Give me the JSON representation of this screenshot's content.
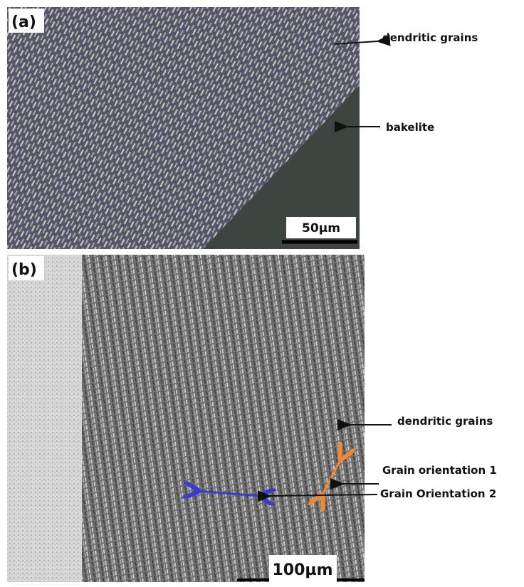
{
  "panel_a": {
    "label": "(a)",
    "annotations": [
      "dendritic grains",
      "bakelite"
    ],
    "scale_bar": "50µm"
  },
  "panel_b": {
    "label": "(b)",
    "annotations": [
      "dendritic grains",
      "Grain orientation 1",
      "Grain Orientation 2"
    ],
    "scale_bar": "100µm"
  }
}
